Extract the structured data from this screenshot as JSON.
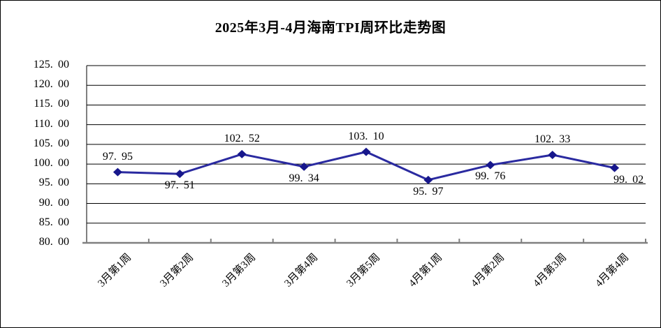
{
  "chart_data": {
    "type": "line",
    "title": "2025年3月-4月海南TPI周环比走势图",
    "categories": [
      "3月第1周",
      "3月第2周",
      "3月第3周",
      "3月第4周",
      "3月第5周",
      "4月第1周",
      "4月第2周",
      "4月第3周",
      "4月第4周"
    ],
    "values": [
      97.95,
      97.51,
      102.52,
      99.34,
      103.1,
      95.97,
      99.76,
      102.33,
      99.02
    ],
    "data_label_positions": [
      "above",
      "below",
      "above",
      "below",
      "above",
      "below",
      "below",
      "above",
      "below"
    ],
    "xlabel": "",
    "ylabel": "",
    "ylim": [
      80,
      125
    ],
    "ytick_step": 5,
    "ytick_decimals": 2,
    "grid": "horizontal",
    "legend_position": "none",
    "marker": "diamond",
    "colors": {
      "line": "#2A2AA0",
      "marker": "#17178C",
      "gridline": "#000000",
      "value_axis": "#000000",
      "category_axis": "#808080",
      "text": "#000000",
      "background": "#ffffff"
    }
  }
}
